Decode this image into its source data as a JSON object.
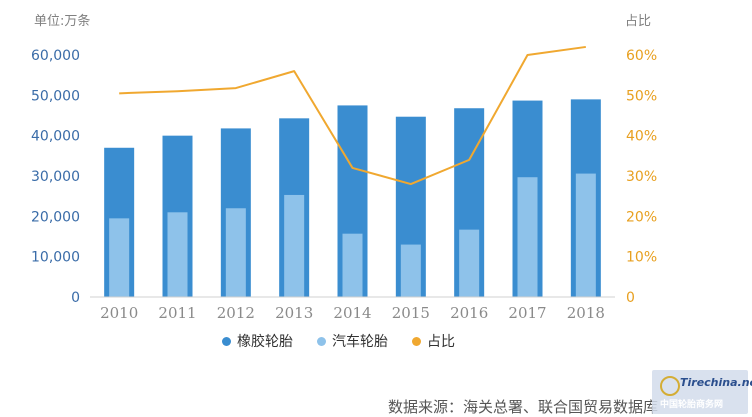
{
  "chart_data": {
    "type": "bar",
    "categories": [
      "2010",
      "2011",
      "2012",
      "2013",
      "2014",
      "2015",
      "2016",
      "2017",
      "2018"
    ],
    "series": [
      {
        "name": "橡胶轮胎",
        "type": "bar",
        "axis": "left",
        "values": [
          37000,
          40000,
          41800,
          44300,
          47500,
          44700,
          46800,
          48700,
          49000
        ]
      },
      {
        "name": "汽车轮胎",
        "type": "bar",
        "axis": "left",
        "values": [
          19500,
          21000,
          22000,
          25300,
          15700,
          13000,
          16700,
          29700,
          30600
        ]
      },
      {
        "name": "占比",
        "type": "line",
        "axis": "right",
        "values": [
          50.5,
          51,
          51.8,
          56,
          32,
          28,
          34,
          60,
          62
        ]
      }
    ],
    "left_axis": {
      "title": "单位:万条",
      "ticks": [
        "0",
        "10,000",
        "20,000",
        "30,000",
        "40,000",
        "50,000",
        "60,000"
      ],
      "ylim": [
        0,
        60000
      ]
    },
    "right_axis": {
      "title": "占比",
      "ticks": [
        "0",
        "10%",
        "20%",
        "30%",
        "40%",
        "50%",
        "60%"
      ],
      "ylim": [
        0,
        60
      ]
    },
    "grid": false,
    "legend_position": "bottom"
  },
  "colors": {
    "bar_total": "#3a8dd0",
    "bar_car": "#8ec2ea",
    "line": "#f0a830",
    "left_tick": "#3a6ca8",
    "right_tick": "#e8a020"
  },
  "source": "数据来源：海关总署、联合国贸易数据库",
  "watermark": {
    "name": "Tirechina",
    "suffix": ".net",
    "subtitle": "中国轮胎商务网"
  }
}
